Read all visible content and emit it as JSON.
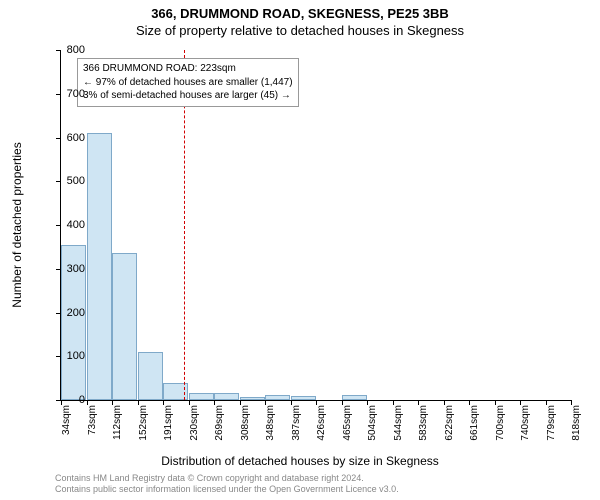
{
  "title_line1": "366, DRUMMOND ROAD, SKEGNESS, PE25 3BB",
  "title_line2": "Size of property relative to detached houses in Skegness",
  "ylabel": "Number of detached properties",
  "xlabel": "Distribution of detached houses by size in Skegness",
  "footer_line1": "Contains HM Land Registry data © Crown copyright and database right 2024.",
  "footer_line2": "Contains public sector information licensed under the Open Government Licence v3.0.",
  "chart": {
    "type": "histogram",
    "ylim": [
      0,
      800
    ],
    "ytick_step": 100,
    "bar_fill": "#cfe5f3",
    "bar_stroke": "#7fa9c9",
    "background_color": "#ffffff",
    "reference_value": 223,
    "reference_color": "#d00000",
    "xtick_labels": [
      "34sqm",
      "73sqm",
      "112sqm",
      "152sqm",
      "191sqm",
      "230sqm",
      "269sqm",
      "308sqm",
      "348sqm",
      "387sqm",
      "426sqm",
      "465sqm",
      "504sqm",
      "544sqm",
      "583sqm",
      "622sqm",
      "661sqm",
      "700sqm",
      "740sqm",
      "779sqm",
      "818sqm"
    ],
    "bin_start": 34,
    "bin_width": 39.25,
    "bin_values": [
      355,
      610,
      335,
      110,
      40,
      15,
      15,
      8,
      12,
      10,
      0,
      12,
      0,
      0,
      0,
      0,
      0,
      0,
      0,
      0
    ],
    "annotation": {
      "line1": "366 DRUMMOND ROAD: 223sqm",
      "line2": "← 97% of detached houses are smaller (1,447)",
      "line3": "3% of semi-detached houses are larger (45) →",
      "border_color": "#999999",
      "fontsize": 10
    }
  }
}
